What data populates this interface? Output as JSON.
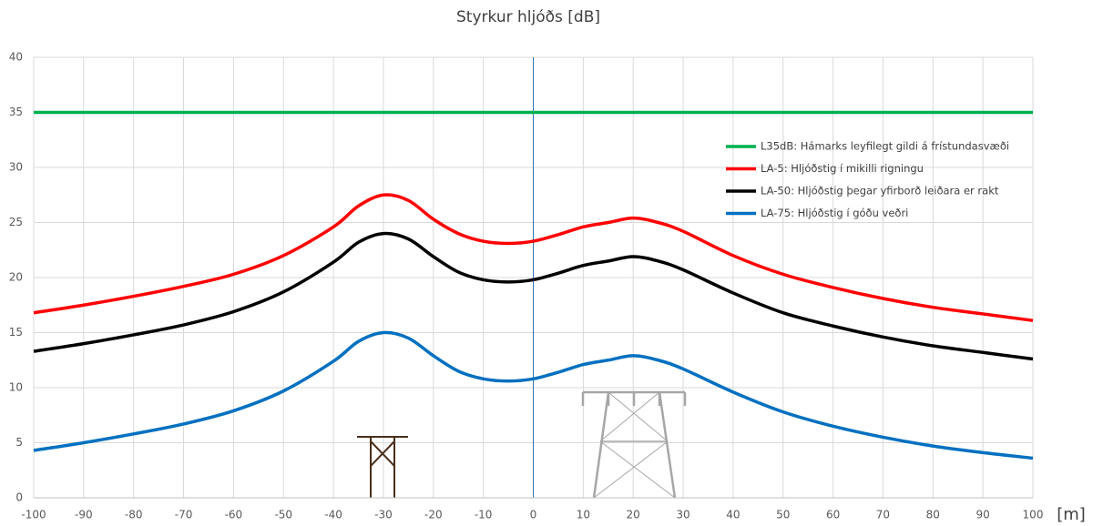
{
  "chart_data": {
    "type": "line",
    "title": "Styrkur hljóðs [dB]",
    "x_label": "[m]",
    "x": [
      -100,
      -90,
      -80,
      -70,
      -60,
      -50,
      -40,
      -35,
      -30,
      -25,
      -20,
      -15,
      -10,
      -5,
      0,
      5,
      10,
      15,
      20,
      25,
      30,
      40,
      50,
      60,
      70,
      80,
      90,
      100
    ],
    "series": [
      {
        "name": "L35dB: Hámarks leyfilegt gildi  á frístundasvæði",
        "color": "#00b050",
        "values": [
          35,
          35,
          35,
          35,
          35,
          35,
          35,
          35,
          35,
          35,
          35,
          35,
          35,
          35,
          35,
          35,
          35,
          35,
          35,
          35,
          35,
          35,
          35,
          35,
          35,
          35,
          35,
          35
        ]
      },
      {
        "name": "LA-5: Hljóðstig í mikilli rigningu",
        "color": "#ff0000",
        "values": [
          16.8,
          17.5,
          18.3,
          19.2,
          20.3,
          22.0,
          24.6,
          26.5,
          27.5,
          27.0,
          25.3,
          24.0,
          23.3,
          23.1,
          23.3,
          23.9,
          24.6,
          25.0,
          25.4,
          25.0,
          24.2,
          22.0,
          20.3,
          19.1,
          18.1,
          17.3,
          16.7,
          16.1
        ]
      },
      {
        "name": "LA-50: Hljóðstig þegar yfirborð leiðara er rakt",
        "color": "#000000",
        "values": [
          13.3,
          14.0,
          14.8,
          15.7,
          16.9,
          18.7,
          21.4,
          23.2,
          24.0,
          23.5,
          21.9,
          20.5,
          19.8,
          19.6,
          19.8,
          20.4,
          21.1,
          21.5,
          21.9,
          21.5,
          20.7,
          18.6,
          16.8,
          15.6,
          14.6,
          13.8,
          13.2,
          12.6
        ]
      },
      {
        "name": "LA-75: Hljóðstig í góðu veðri",
        "color": "#0070c0",
        "values": [
          4.3,
          5.0,
          5.8,
          6.7,
          7.9,
          9.7,
          12.4,
          14.2,
          15.0,
          14.5,
          12.9,
          11.5,
          10.8,
          10.6,
          10.8,
          11.4,
          12.1,
          12.5,
          12.9,
          12.5,
          11.7,
          9.6,
          7.8,
          6.5,
          5.5,
          4.7,
          4.1,
          3.6
        ]
      }
    ],
    "xlim": [
      -100,
      100
    ],
    "xticks": [
      -100,
      -90,
      -80,
      -70,
      -60,
      -50,
      -40,
      -30,
      -20,
      -10,
      0,
      10,
      20,
      30,
      40,
      50,
      60,
      70,
      80,
      90,
      100
    ],
    "ylim": [
      0,
      40
    ],
    "yticks": [
      0,
      5,
      10,
      15,
      20,
      25,
      30,
      35,
      40
    ],
    "grid": true
  }
}
